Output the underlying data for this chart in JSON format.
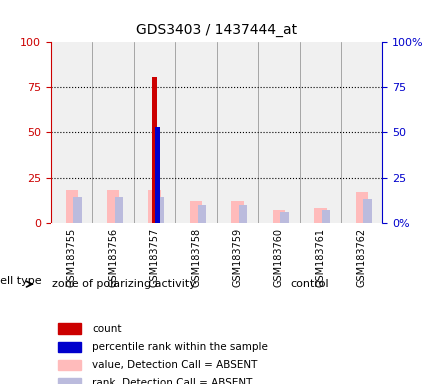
{
  "title": "GDS3403 / 1437444_at",
  "samples": [
    "GSM183755",
    "GSM183756",
    "GSM183757",
    "GSM183758",
    "GSM183759",
    "GSM183760",
    "GSM183761",
    "GSM183762"
  ],
  "group1_label": "zone of polarizing activity",
  "group2_label": "control",
  "group1_count": 4,
  "group2_count": 4,
  "cell_type_label": "cell type",
  "ylim": [
    0,
    100
  ],
  "yticks": [
    0,
    25,
    50,
    75,
    100
  ],
  "yticklabels_left": [
    "0",
    "25",
    "50",
    "75",
    "100"
  ],
  "yticklabels_right": [
    "0%",
    "25",
    "50",
    "75",
    "100%"
  ],
  "left_axis_color": "#cc0000",
  "right_axis_color": "#0000cc",
  "red_bar_sample_idx": 2,
  "red_bar_height": 81,
  "blue_bar_height": 53,
  "pink_bars": [
    18,
    18,
    18,
    12,
    12,
    7,
    8,
    17
  ],
  "lavender_bars": [
    14,
    14,
    14,
    10,
    10,
    6,
    7,
    13
  ],
  "bar_width": 0.25,
  "bg_color": "#ffffff",
  "plot_bg_color": "#f0f0f0",
  "group_bg_color": "#66cc66",
  "legend_items": [
    {
      "label": "count",
      "color": "#cc0000",
      "marker": "s"
    },
    {
      "label": "percentile rank within the sample",
      "color": "#0000cc",
      "marker": "s"
    },
    {
      "label": "value, Detection Call = ABSENT",
      "color": "#ffaaaa",
      "marker": "s"
    },
    {
      "label": "rank, Detection Call = ABSENT",
      "color": "#aaaadd",
      "marker": "s"
    }
  ]
}
